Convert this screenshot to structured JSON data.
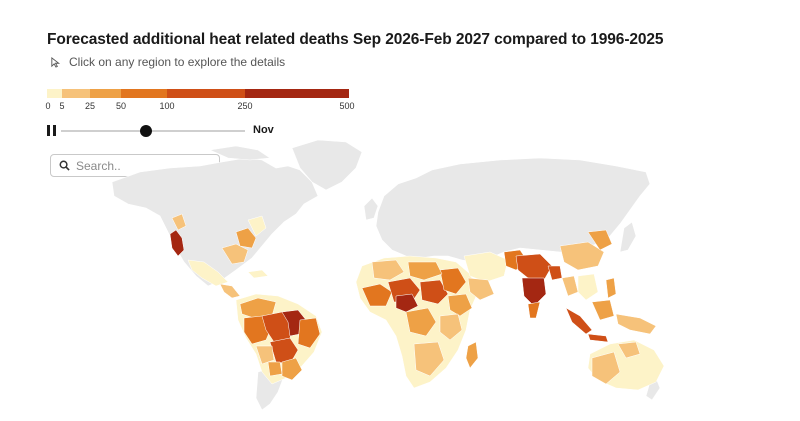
{
  "title": "Forecasted additional heat related deaths Sep 2026-Feb 2027 compared to 1996-2025",
  "hint": "Click on any region to explore the details",
  "legend": {
    "ticks": [
      "0",
      "5",
      "25",
      "50",
      "100",
      "250",
      "500"
    ],
    "colors": [
      "#fdf3c8",
      "#f6c27a",
      "#eea146",
      "#e2761f",
      "#cf4f17",
      "#a42712"
    ]
  },
  "player": {
    "state": "playing",
    "month": "Nov",
    "progress": 0.46
  },
  "search": {
    "placeholder": "Search.."
  },
  "colors": {
    "land_no_data": "#e8e8e8",
    "very_low": "#fdf3c8",
    "low": "#f6c27a",
    "moderate": "#eea146",
    "high": "#e2761f",
    "very_high": "#cf4f17",
    "extreme": "#a42712"
  }
}
